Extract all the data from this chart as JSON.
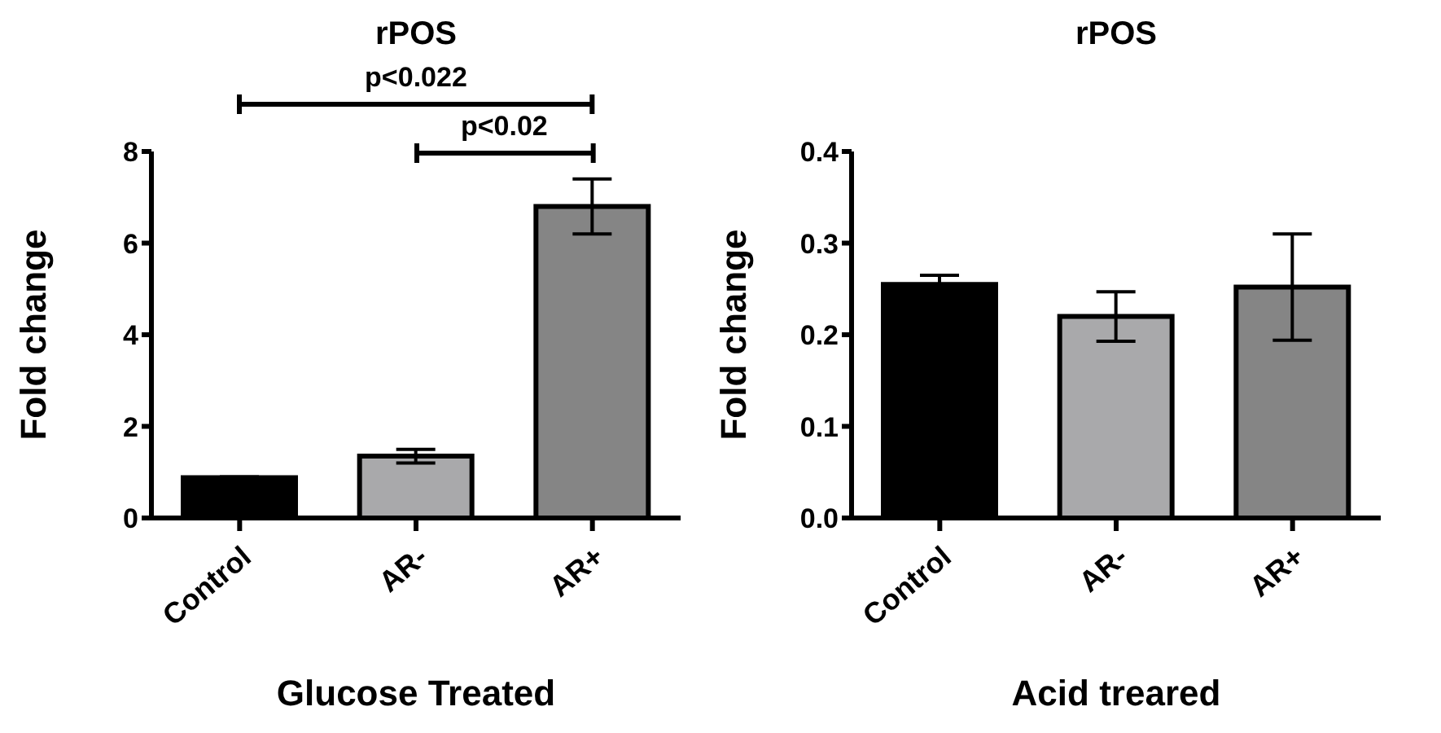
{
  "chart_data": [
    {
      "type": "bar",
      "title": "rPOS",
      "xlabel": "Glucose Treated",
      "ylabel": "Fold change",
      "categories": [
        "Control",
        "AR-",
        "AR+"
      ],
      "values": [
        0.88,
        1.35,
        6.8
      ],
      "errors": [
        0.02,
        0.15,
        0.6
      ],
      "colors": [
        "#000000",
        "#a9a9ab",
        "#858585"
      ],
      "ylim": [
        0,
        8
      ],
      "yticks": [
        0,
        2,
        4,
        6,
        8
      ],
      "grid": false,
      "legend": false,
      "annotations": [
        "p<0.022",
        "p<0.02"
      ]
    },
    {
      "type": "bar",
      "title": "rPOS",
      "xlabel": "Acid treared",
      "ylabel": "Fold change",
      "categories": [
        "Control",
        "AR-",
        "AR+"
      ],
      "values": [
        0.255,
        0.22,
        0.252
      ],
      "errors": [
        0.01,
        0.027,
        0.058
      ],
      "colors": [
        "#000000",
        "#a9a9ab",
        "#858585"
      ],
      "ylim": [
        0,
        0.4
      ],
      "yticks": [
        {
          "value": 0,
          "label": "0.0"
        },
        0.1,
        0.2,
        0.3,
        0.4
      ],
      "grid": false,
      "legend": false
    }
  ]
}
